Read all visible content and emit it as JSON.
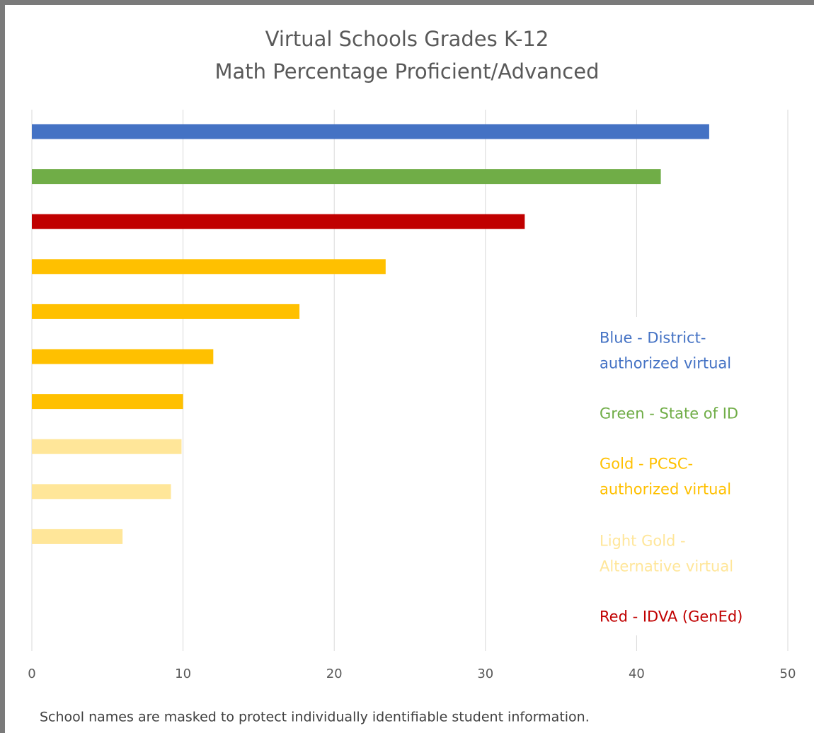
{
  "chart_data": {
    "type": "bar",
    "orientation": "horizontal",
    "title_line1": "Virtual Schools Grades K-12",
    "title_line2": "Math Percentage Proficient/Advanced",
    "xlim": [
      0,
      50
    ],
    "x_ticks": [
      "0",
      "10",
      "20",
      "30",
      "40",
      "50"
    ],
    "grid": true,
    "bars": [
      {
        "value": 44.8,
        "color": "#4472C4"
      },
      {
        "value": 41.6,
        "color": "#70AD47"
      },
      {
        "value": 32.6,
        "color": "#C00000"
      },
      {
        "value": 23.4,
        "color": "#FFC000"
      },
      {
        "value": 17.7,
        "color": "#FFC000"
      },
      {
        "value": 12.0,
        "color": "#FFC000"
      },
      {
        "value": 10.0,
        "color": "#FFC000"
      },
      {
        "value": 9.9,
        "color": "#FFE699"
      },
      {
        "value": 9.2,
        "color": "#FFE699"
      },
      {
        "value": 6.0,
        "color": "#FFE699"
      }
    ],
    "legend": [
      {
        "lines": [
          "Blue - District-",
          "authorized virtual"
        ],
        "color": "#4472C4"
      },
      {
        "lines": [
          "Green - State of ID"
        ],
        "color": "#70AD47"
      },
      {
        "lines": [
          "Gold - PCSC-",
          "authorized virtual"
        ],
        "color": "#FFC000"
      },
      {
        "lines": [
          "Light Gold -",
          "Alternative virtual"
        ],
        "color": "#FFE699"
      },
      {
        "lines": [
          "Red - IDVA (GenEd)"
        ],
        "color": "#C00000"
      }
    ],
    "footnote": "School names are masked to protect individually identifiable student information."
  }
}
